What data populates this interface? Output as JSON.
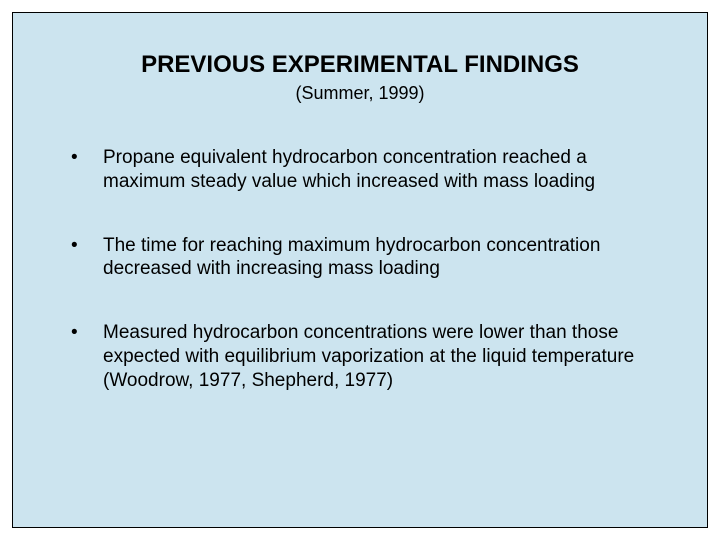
{
  "slide": {
    "background_color": "#cce4ef",
    "border_color": "#000000",
    "text_color": "#000000",
    "title": "PREVIOUS EXPERIMENTAL FINDINGS",
    "title_fontsize": 24,
    "title_fontweight": "bold",
    "subtitle": "(Summer, 1999)",
    "subtitle_fontsize": 18,
    "bullet_fontsize": 19,
    "bullets": [
      "Propane equivalent hydrocarbon concentration   reached a maximum steady value which increased with mass loading",
      "The time for reaching maximum hydrocarbon concentration decreased with increasing mass loading",
      "Measured hydrocarbon concentrations were lower than those expected with equilibrium vaporization at the liquid temperature (Woodrow, 1977, Shepherd, 1977)"
    ]
  }
}
